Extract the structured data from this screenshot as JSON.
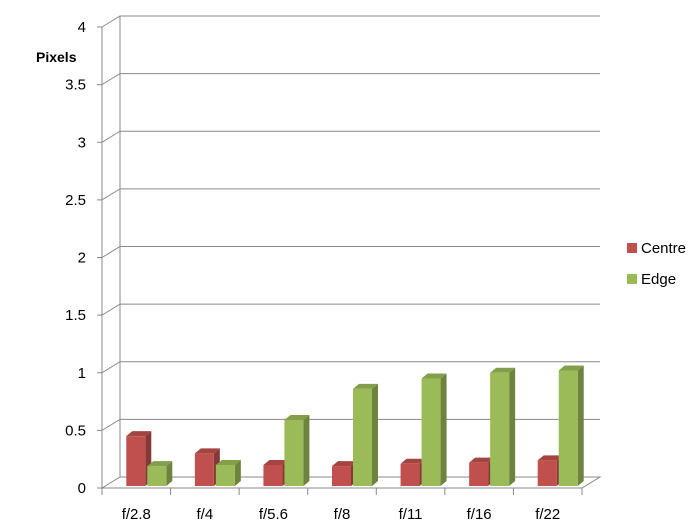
{
  "chart_data": {
    "type": "bar",
    "ylabel": "Pixels",
    "categories": [
      "f/2.8",
      "f/4",
      "f/5.6",
      "f/8",
      "f/11",
      "f/16",
      "f/22"
    ],
    "ylim": [
      0,
      4
    ],
    "yticks": [
      "0",
      "0.5",
      "1",
      "1.5",
      "2",
      "2.5",
      "3",
      "3.5",
      "4"
    ],
    "series": [
      {
        "name": "Centre",
        "color": "#c0504d",
        "values": [
          0.45,
          0.3,
          0.2,
          0.19,
          0.21,
          0.22,
          0.24
        ]
      },
      {
        "name": "Edge",
        "color": "#9bbb59",
        "values": [
          0.19,
          0.2,
          0.59,
          0.86,
          0.95,
          1.0,
          1.02
        ]
      }
    ],
    "grid": true,
    "legend": "right"
  }
}
